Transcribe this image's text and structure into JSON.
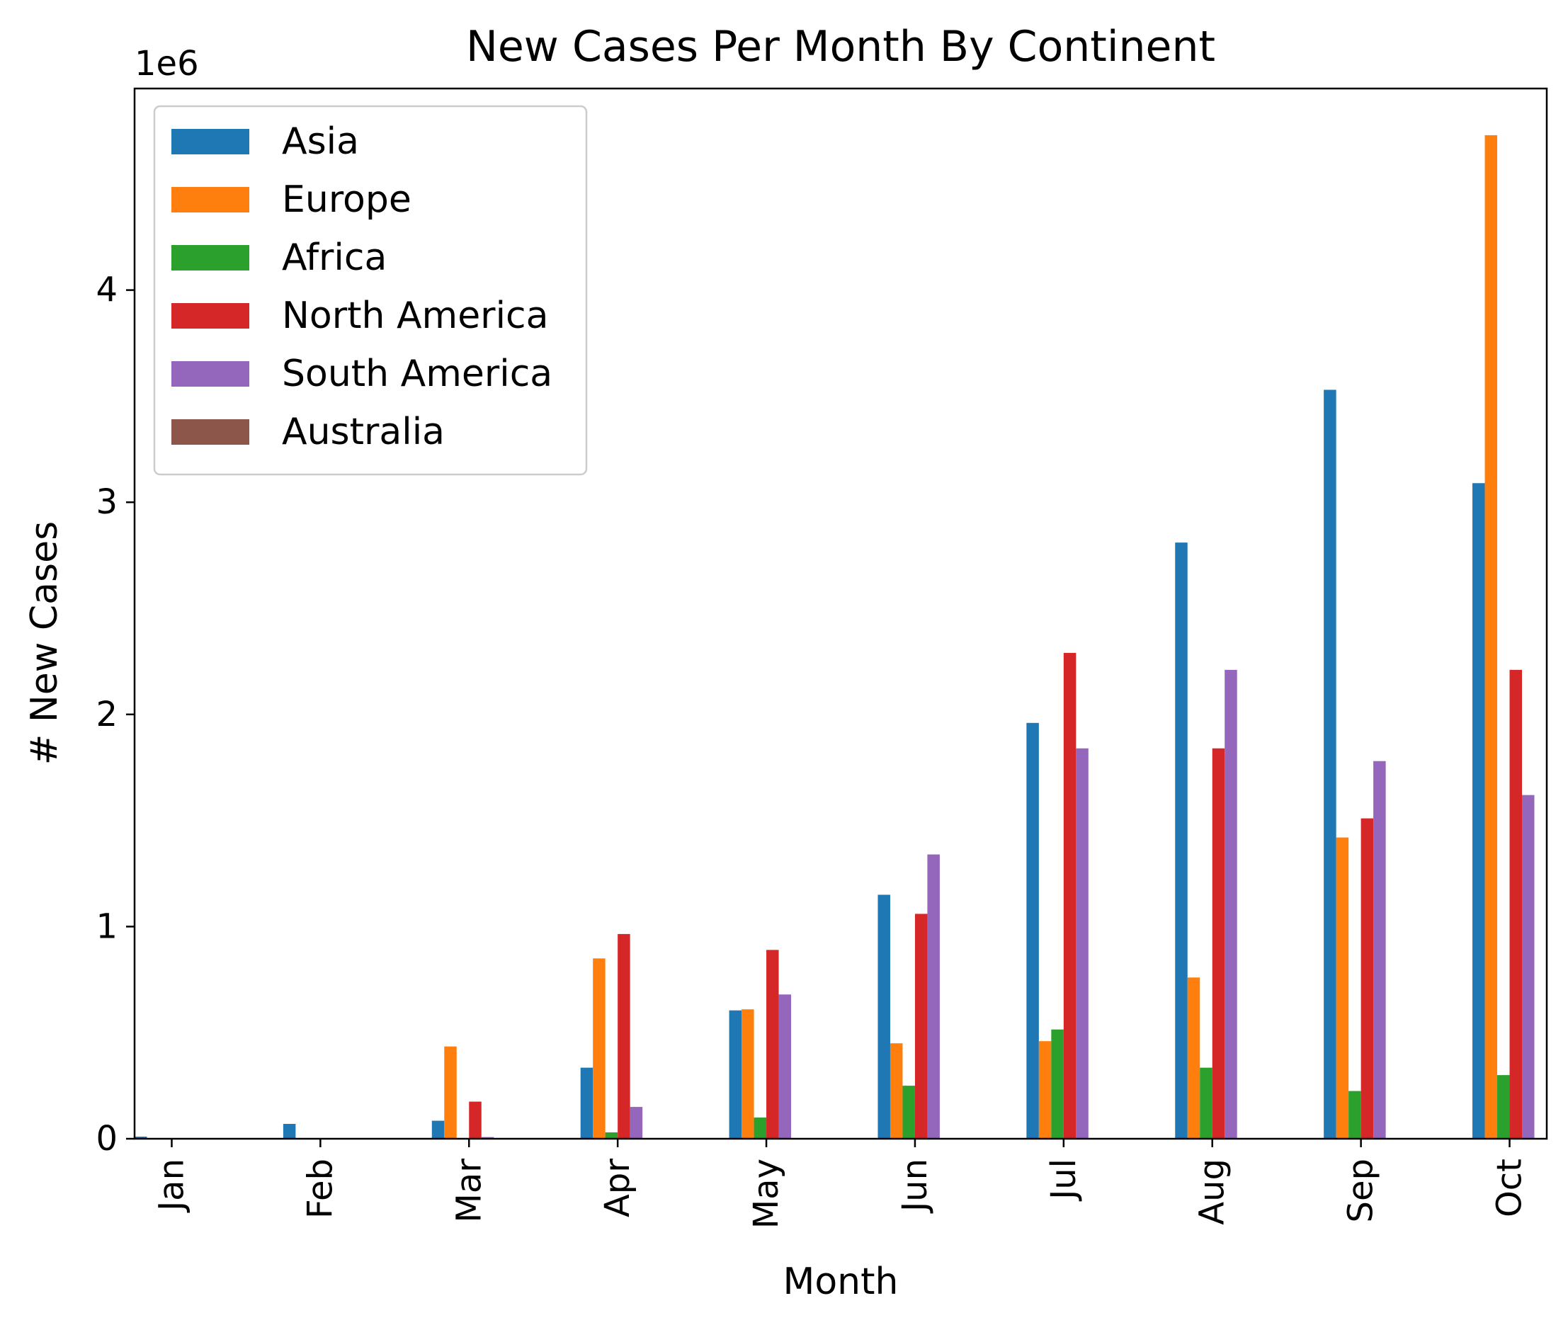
{
  "chart_data": {
    "type": "bar",
    "title": "New Cases Per Month By Continent",
    "xlabel": "Month",
    "ylabel": "# New Cases",
    "y_offset_label": "1e6",
    "ylim": [
      0,
      4950000
    ],
    "yticks": [
      0,
      1000000,
      2000000,
      3000000,
      4000000
    ],
    "ytick_labels": [
      "0",
      "1",
      "2",
      "3",
      "4"
    ],
    "grid": false,
    "legend_position": "top-left",
    "categories": [
      "Jan",
      "Feb",
      "Mar",
      "Apr",
      "May",
      "Jun",
      "Jul",
      "Aug",
      "Sep",
      "Oct"
    ],
    "series": [
      {
        "name": "Asia",
        "color": "#1f77b4",
        "values": [
          10000,
          70000,
          85000,
          335000,
          605000,
          1150000,
          1960000,
          2810000,
          3530000,
          3090000
        ]
      },
      {
        "name": "Europe",
        "color": "#ff7f0e",
        "values": [
          0,
          0,
          435000,
          850000,
          610000,
          450000,
          460000,
          760000,
          1420000,
          4730000
        ]
      },
      {
        "name": "Africa",
        "color": "#2ca02c",
        "values": [
          0,
          0,
          0,
          30000,
          100000,
          250000,
          515000,
          335000,
          225000,
          300000
        ]
      },
      {
        "name": "North America",
        "color": "#d62728",
        "values": [
          0,
          0,
          175000,
          965000,
          890000,
          1060000,
          2290000,
          1840000,
          1510000,
          2210000
        ]
      },
      {
        "name": "South America",
        "color": "#9467bd",
        "values": [
          0,
          0,
          8000,
          150000,
          680000,
          1340000,
          1840000,
          2210000,
          1780000,
          1620000
        ]
      },
      {
        "name": "Australia",
        "color": "#8c564b",
        "values": [
          0,
          0,
          0,
          0,
          0,
          0,
          0,
          0,
          0,
          0
        ]
      }
    ]
  }
}
